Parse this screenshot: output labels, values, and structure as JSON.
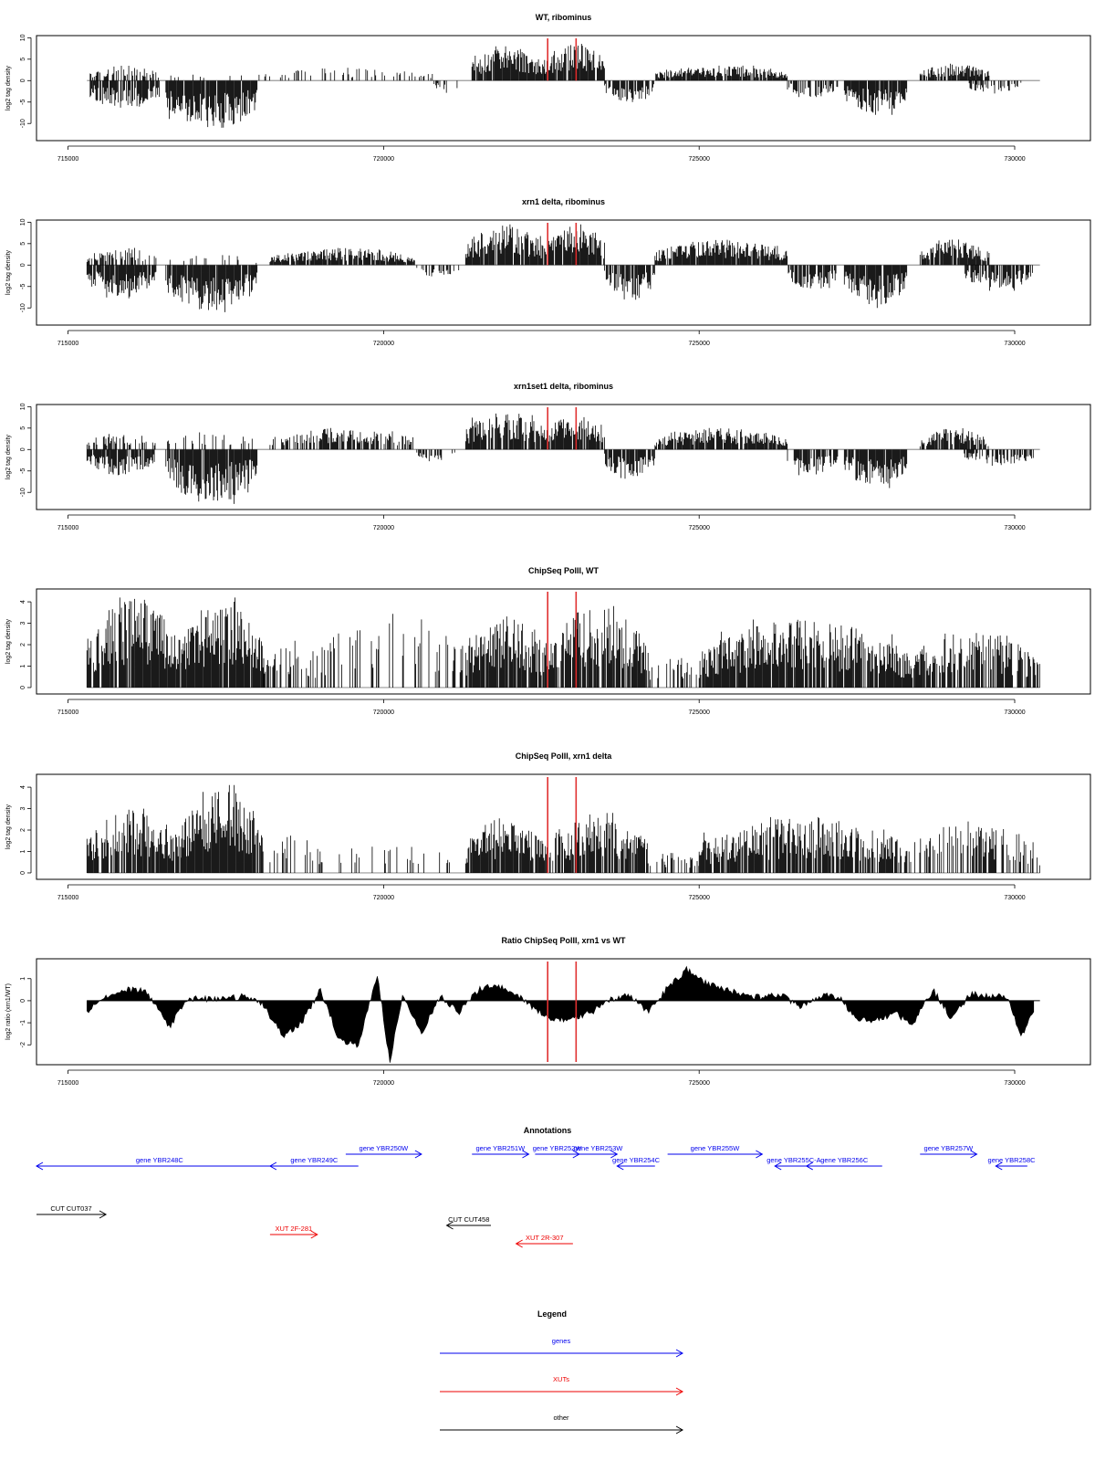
{
  "chart_data": [
    {
      "type": "bar",
      "title": "WT, ribominus",
      "ylabel": "log2 tag density",
      "xlim": [
        714500,
        731200
      ],
      "ylim": [
        -14,
        10.5
      ],
      "yticks": [
        -10,
        -5,
        0,
        5,
        10
      ],
      "xticks": [
        715000,
        720000,
        725000,
        730000
      ],
      "markers": [
        722600,
        723050
      ],
      "segments": [
        {
          "start": 715350,
          "end": 716450,
          "sign": 1,
          "max": 3.5,
          "density": 0.5
        },
        {
          "start": 715350,
          "end": 716450,
          "sign": -1,
          "max": 7,
          "density": 0.9
        },
        {
          "start": 716550,
          "end": 718000,
          "sign": 1,
          "max": 2,
          "density": 0.05
        },
        {
          "start": 716550,
          "end": 718000,
          "sign": -1,
          "max": 12,
          "density": 0.95
        },
        {
          "start": 718000,
          "end": 720800,
          "sign": 1,
          "max": 3,
          "density": 0.25
        },
        {
          "start": 720800,
          "end": 721200,
          "sign": -1,
          "max": 3,
          "density": 0.4
        },
        {
          "start": 721400,
          "end": 722550,
          "sign": 1,
          "max": 8,
          "density": 0.95
        },
        {
          "start": 722550,
          "end": 723500,
          "sign": 1,
          "max": 9,
          "density": 0.95
        },
        {
          "start": 723500,
          "end": 724300,
          "sign": -1,
          "max": 5,
          "density": 0.85
        },
        {
          "start": 724300,
          "end": 726400,
          "sign": 1,
          "max": 3.5,
          "density": 0.9
        },
        {
          "start": 726400,
          "end": 727200,
          "sign": -1,
          "max": 4,
          "density": 0.5
        },
        {
          "start": 727300,
          "end": 728300,
          "sign": -1,
          "max": 8,
          "density": 0.95
        },
        {
          "start": 728500,
          "end": 729600,
          "sign": 1,
          "max": 4,
          "density": 0.9
        },
        {
          "start": 729200,
          "end": 730100,
          "sign": -1,
          "max": 3,
          "density": 0.5
        }
      ]
    },
    {
      "type": "bar",
      "title": "xrn1 delta, ribominus",
      "ylabel": "log2 tag density",
      "xlim": [
        714500,
        731200
      ],
      "ylim": [
        -14,
        10.5
      ],
      "yticks": [
        -10,
        -5,
        0,
        5,
        10
      ],
      "xticks": [
        715000,
        720000,
        725000,
        730000
      ],
      "markers": [
        722600,
        723050
      ],
      "segments": [
        {
          "start": 715300,
          "end": 716400,
          "sign": 1,
          "max": 4,
          "density": 0.5
        },
        {
          "start": 715300,
          "end": 716400,
          "sign": -1,
          "max": 8,
          "density": 0.95
        },
        {
          "start": 716550,
          "end": 718000,
          "sign": 1,
          "max": 2.5,
          "density": 0.1
        },
        {
          "start": 716550,
          "end": 718000,
          "sign": -1,
          "max": 11,
          "density": 0.95
        },
        {
          "start": 718200,
          "end": 720500,
          "sign": 1,
          "max": 4,
          "density": 0.9
        },
        {
          "start": 720500,
          "end": 721200,
          "sign": -1,
          "max": 3,
          "density": 0.4
        },
        {
          "start": 721300,
          "end": 722550,
          "sign": 1,
          "max": 9.5,
          "density": 0.95
        },
        {
          "start": 722550,
          "end": 723500,
          "sign": 1,
          "max": 9.5,
          "density": 0.95
        },
        {
          "start": 723500,
          "end": 724300,
          "sign": -1,
          "max": 9,
          "density": 0.9
        },
        {
          "start": 724300,
          "end": 726400,
          "sign": 1,
          "max": 6,
          "density": 0.95
        },
        {
          "start": 726400,
          "end": 727200,
          "sign": -1,
          "max": 6,
          "density": 0.8
        },
        {
          "start": 727300,
          "end": 728300,
          "sign": -1,
          "max": 10,
          "density": 0.95
        },
        {
          "start": 728500,
          "end": 729600,
          "sign": 1,
          "max": 6,
          "density": 0.95
        },
        {
          "start": 729200,
          "end": 730300,
          "sign": -1,
          "max": 6,
          "density": 0.7
        }
      ]
    },
    {
      "type": "bar",
      "title": "xrn1set1 delta, ribominus",
      "ylabel": "log2 tag density",
      "xlim": [
        714500,
        731200
      ],
      "ylim": [
        -14,
        10.5
      ],
      "yticks": [
        -10,
        -5,
        0,
        5,
        10
      ],
      "xticks": [
        715000,
        720000,
        725000,
        730000
      ],
      "markers": [
        722600,
        723050
      ],
      "segments": [
        {
          "start": 715300,
          "end": 716400,
          "sign": 1,
          "max": 4,
          "density": 0.4
        },
        {
          "start": 715300,
          "end": 716400,
          "sign": -1,
          "max": 6,
          "density": 0.9
        },
        {
          "start": 716550,
          "end": 718000,
          "sign": 1,
          "max": 4.5,
          "density": 0.2
        },
        {
          "start": 716550,
          "end": 718000,
          "sign": -1,
          "max": 13,
          "density": 0.9
        },
        {
          "start": 718200,
          "end": 720500,
          "sign": 1,
          "max": 5,
          "density": 0.6
        },
        {
          "start": 720500,
          "end": 721200,
          "sign": -1,
          "max": 3,
          "density": 0.4
        },
        {
          "start": 721300,
          "end": 722550,
          "sign": 1,
          "max": 9,
          "density": 0.9
        },
        {
          "start": 722550,
          "end": 723500,
          "sign": 1,
          "max": 8,
          "density": 0.9
        },
        {
          "start": 723500,
          "end": 724300,
          "sign": -1,
          "max": 7,
          "density": 0.85
        },
        {
          "start": 724300,
          "end": 726400,
          "sign": 1,
          "max": 5,
          "density": 0.85
        },
        {
          "start": 726400,
          "end": 727200,
          "sign": -1,
          "max": 6,
          "density": 0.7
        },
        {
          "start": 727300,
          "end": 728300,
          "sign": -1,
          "max": 9,
          "density": 0.9
        },
        {
          "start": 728500,
          "end": 729600,
          "sign": 1,
          "max": 5,
          "density": 0.85
        },
        {
          "start": 729200,
          "end": 730300,
          "sign": -1,
          "max": 4,
          "density": 0.6
        }
      ]
    },
    {
      "type": "bar",
      "title": "ChipSeq PolII, WT",
      "ylabel": "log2 tag density",
      "xlim": [
        714500,
        731200
      ],
      "ylim": [
        -0.3,
        4.6
      ],
      "yticks": [
        0,
        1,
        2,
        3,
        4
      ],
      "xticks": [
        715000,
        720000,
        725000,
        730000
      ],
      "markers": [
        722600,
        723050
      ],
      "segments": [
        {
          "start": 715300,
          "end": 716800,
          "sign": 1,
          "max": 4.2,
          "density": 0.9
        },
        {
          "start": 716800,
          "end": 718100,
          "sign": 1,
          "max": 4.2,
          "density": 0.98
        },
        {
          "start": 718100,
          "end": 719000,
          "sign": 1,
          "max": 2.5,
          "density": 0.5
        },
        {
          "start": 719000,
          "end": 721300,
          "sign": 1,
          "max": 3.5,
          "density": 0.2
        },
        {
          "start": 721300,
          "end": 722550,
          "sign": 1,
          "max": 3.5,
          "density": 0.85
        },
        {
          "start": 722550,
          "end": 724200,
          "sign": 1,
          "max": 3.8,
          "density": 0.9
        },
        {
          "start": 724200,
          "end": 725000,
          "sign": 1,
          "max": 1.5,
          "density": 0.3
        },
        {
          "start": 725000,
          "end": 728300,
          "sign": 1,
          "max": 3.2,
          "density": 0.85
        },
        {
          "start": 728300,
          "end": 730400,
          "sign": 1,
          "max": 2.8,
          "density": 0.7
        }
      ]
    },
    {
      "type": "bar",
      "title": "ChipSeq PolII, xrn1 delta",
      "ylabel": "log2 tag density",
      "xlim": [
        714500,
        731200
      ],
      "ylim": [
        -0.3,
        4.6
      ],
      "yticks": [
        0,
        1,
        2,
        3,
        4
      ],
      "xticks": [
        715000,
        720000,
        725000,
        730000
      ],
      "markers": [
        722600,
        723050
      ],
      "segments": [
        {
          "start": 715300,
          "end": 716800,
          "sign": 1,
          "max": 3,
          "density": 0.85
        },
        {
          "start": 716800,
          "end": 718100,
          "sign": 1,
          "max": 4.1,
          "density": 0.98
        },
        {
          "start": 718200,
          "end": 719000,
          "sign": 1,
          "max": 1.8,
          "density": 0.3
        },
        {
          "start": 719000,
          "end": 721300,
          "sign": 1,
          "max": 1.5,
          "density": 0.12
        },
        {
          "start": 721300,
          "end": 722550,
          "sign": 1,
          "max": 2.6,
          "density": 0.9
        },
        {
          "start": 722550,
          "end": 724200,
          "sign": 1,
          "max": 2.8,
          "density": 0.85
        },
        {
          "start": 724200,
          "end": 725000,
          "sign": 1,
          "max": 1,
          "density": 0.3
        },
        {
          "start": 725000,
          "end": 728300,
          "sign": 1,
          "max": 2.6,
          "density": 0.85
        },
        {
          "start": 728300,
          "end": 730400,
          "sign": 1,
          "max": 2.4,
          "density": 0.5
        }
      ]
    },
    {
      "type": "area",
      "title": "Ratio ChipSeq PolII, xrn1 vs WT",
      "ylabel": "log2 ratio (xrn1/WT)",
      "xlim": [
        714500,
        731200
      ],
      "ylim": [
        -2.9,
        1.9
      ],
      "yticks": [
        -2,
        -1,
        0,
        1
      ],
      "xticks": [
        715000,
        720000,
        725000,
        730000
      ],
      "markers": [
        722600,
        723050
      ],
      "x": [
        715300,
        715600,
        715900,
        716200,
        716400,
        716600,
        716900,
        717200,
        717500,
        717800,
        718100,
        718400,
        718700,
        719000,
        719300,
        719600,
        719900,
        720100,
        720300,
        720600,
        720900,
        721200,
        721500,
        721800,
        722100,
        722400,
        722700,
        723000,
        723300,
        723600,
        723900,
        724200,
        724500,
        724800,
        725100,
        725400,
        725700,
        726000,
        726300,
        726600,
        726900,
        727200,
        727500,
        727800,
        728100,
        728400,
        728700,
        729000,
        729300,
        729600,
        729900,
        730100,
        730300
      ],
      "values": [
        -0.5,
        0.2,
        0.5,
        0.5,
        -0.2,
        -1.2,
        0.1,
        0.1,
        0.1,
        0.2,
        -0.2,
        -1.6,
        -1,
        0.5,
        -1.8,
        -2,
        1.2,
        -2.8,
        0.3,
        -1.5,
        0.2,
        -0.5,
        0.5,
        0.7,
        0.3,
        -0.4,
        -0.9,
        -0.8,
        -0.5,
        0.1,
        0.2,
        -0.5,
        0.6,
        1.4,
        0.8,
        0.5,
        0.3,
        0.1,
        0.3,
        -0.3,
        0.2,
        0.2,
        -0.8,
        -0.9,
        -0.6,
        -1,
        0.5,
        -0.8,
        0.3,
        0.2,
        0.2,
        -1.7,
        -0.4
      ]
    }
  ],
  "annotations": {
    "title": "Annotations",
    "features": [
      {
        "label": "gene YBR248C",
        "start": 718400,
        "end": 714500,
        "type": "gene",
        "row": 1
      },
      {
        "label": "gene YBR249C",
        "start": 719600,
        "end": 718200,
        "type": "gene",
        "row": 1
      },
      {
        "label": "gene YBR250W",
        "start": 719400,
        "end": 720600,
        "type": "gene",
        "row": 0
      },
      {
        "label": "gene YBR251W",
        "start": 721400,
        "end": 722300,
        "type": "gene",
        "row": 0
      },
      {
        "label": "gene YBR252W",
        "start": 722400,
        "end": 723100,
        "type": "gene",
        "row": 0
      },
      {
        "label": "gene YBR253W",
        "start": 723100,
        "end": 723700,
        "type": "gene",
        "row": 0
      },
      {
        "label": "gene YBR254C",
        "start": 724300,
        "end": 723700,
        "type": "gene",
        "row": 1
      },
      {
        "label": "gene YBR255W",
        "start": 724500,
        "end": 726000,
        "type": "gene",
        "row": 0
      },
      {
        "label": "gene YBR255C-A",
        "start": 726800,
        "end": 726200,
        "type": "gene",
        "row": 1
      },
      {
        "label": "gene YBR256C",
        "start": 727900,
        "end": 726700,
        "type": "gene",
        "row": 1
      },
      {
        "label": "gene YBR257W",
        "start": 728500,
        "end": 729400,
        "type": "gene",
        "row": 0
      },
      {
        "label": "gene YBR258C",
        "start": 730200,
        "end": 729700,
        "type": "gene",
        "row": 1
      },
      {
        "label": "CUT CUT037",
        "start": 714500,
        "end": 715600,
        "type": "other",
        "row": 3
      },
      {
        "label": "XUT 2F-281",
        "start": 718200,
        "end": 718950,
        "type": "xut",
        "row": 4
      },
      {
        "label": "CUT CUT458",
        "start": 721700,
        "end": 721000,
        "type": "other",
        "row": 3.4
      },
      {
        "label": "XUT 2R-307",
        "start": 723000,
        "end": 722100,
        "type": "xut",
        "row": 5
      }
    ]
  },
  "legend": {
    "title": "Legend",
    "items": [
      {
        "label": "genes",
        "type": "gene"
      },
      {
        "label": "XUTs",
        "type": "xut"
      },
      {
        "label": "other",
        "type": "other"
      }
    ]
  },
  "colors": {
    "gene": "#0000ee",
    "xut": "#ee0000",
    "other": "#000000",
    "marker": "#e03030",
    "baseline": "#999999"
  }
}
